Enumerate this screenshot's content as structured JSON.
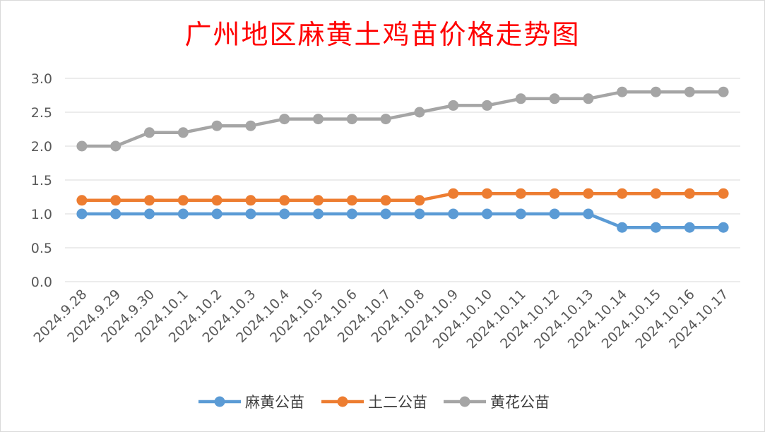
{
  "chart_data": {
    "type": "line",
    "title": "广州地区麻黄土鸡苗价格走势图",
    "categories": [
      "2024.9.28",
      "2024.9.29",
      "2024.9.30",
      "2024.10.1",
      "2024.10.2",
      "2024.10.3",
      "2024.10.4",
      "2024.10.5",
      "2024.10.6",
      "2024.10.7",
      "2024.10.8",
      "2024.10.9",
      "2024.10.10",
      "2024.10.11",
      "2024.10.12",
      "2024.10.13",
      "2024.10.14",
      "2024.10.15",
      "2024.10.16",
      "2024.10.17"
    ],
    "series": [
      {
        "name": "麻黄公苗",
        "color": "#5b9bd5",
        "values": [
          1.0,
          1.0,
          1.0,
          1.0,
          1.0,
          1.0,
          1.0,
          1.0,
          1.0,
          1.0,
          1.0,
          1.0,
          1.0,
          1.0,
          1.0,
          1.0,
          0.8,
          0.8,
          0.8,
          0.8
        ]
      },
      {
        "name": "土二公苗",
        "color": "#ed7d31",
        "values": [
          1.2,
          1.2,
          1.2,
          1.2,
          1.2,
          1.2,
          1.2,
          1.2,
          1.2,
          1.2,
          1.2,
          1.3,
          1.3,
          1.3,
          1.3,
          1.3,
          1.3,
          1.3,
          1.3,
          1.3
        ]
      },
      {
        "name": "黄花公苗",
        "color": "#a5a5a5",
        "values": [
          2.0,
          2.0,
          2.2,
          2.2,
          2.3,
          2.3,
          2.4,
          2.4,
          2.4,
          2.4,
          2.5,
          2.6,
          2.6,
          2.7,
          2.7,
          2.7,
          2.8,
          2.8,
          2.8,
          2.8
        ]
      }
    ],
    "y_ticks": [
      "0.0",
      "0.5",
      "1.0",
      "1.5",
      "2.0",
      "2.5",
      "3.0"
    ],
    "ylim": [
      0,
      3.0
    ],
    "grid": true,
    "legend_position": "bottom",
    "xlabel": "",
    "ylabel": ""
  }
}
